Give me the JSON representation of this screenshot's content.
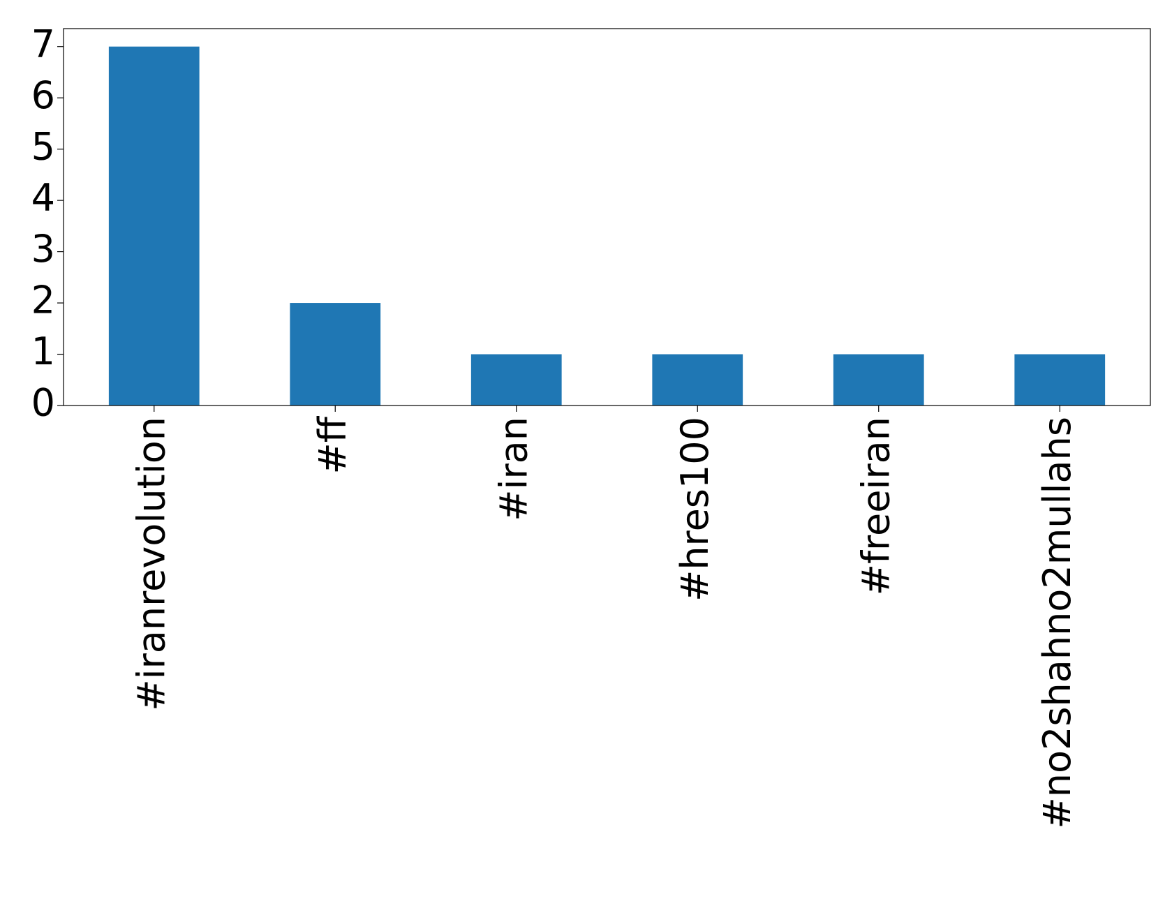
{
  "chart_data": {
    "type": "bar",
    "categories": [
      "#iranrevolution",
      "#ff",
      "#iran",
      "#hres100",
      "#freeiran",
      "#no2shahno2mullahs"
    ],
    "values": [
      7,
      2,
      1,
      1,
      1,
      1
    ],
    "color": "#1f77b4",
    "ylim": [
      0,
      7.35
    ],
    "yticks": [
      0,
      1,
      2,
      3,
      4,
      5,
      6,
      7
    ],
    "grid": false
  }
}
